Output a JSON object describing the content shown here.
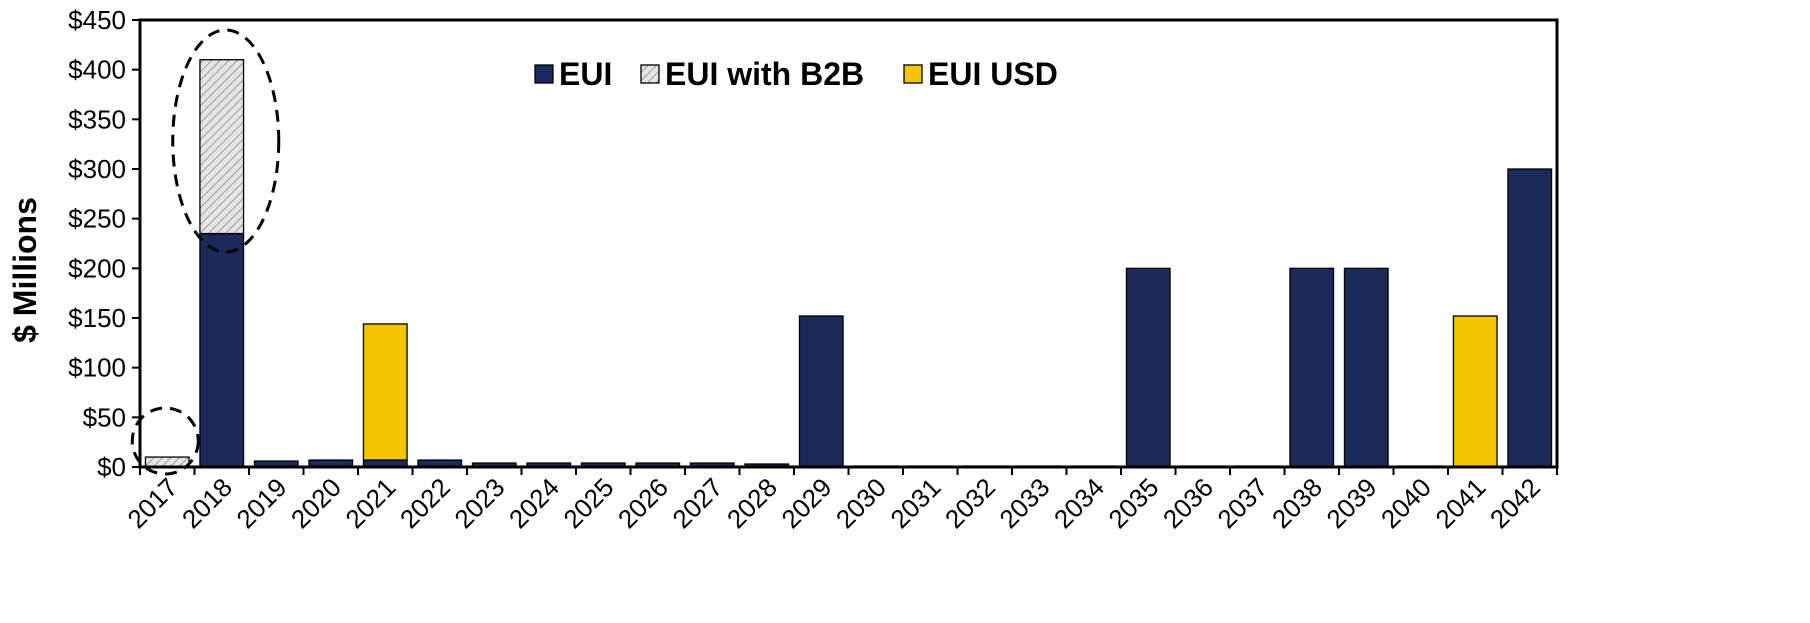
{
  "chart_data": {
    "type": "bar",
    "stacked": true,
    "title": "",
    "xlabel": "",
    "ylabel": "$ Millions",
    "ylim": [
      0,
      450
    ],
    "yticks": [
      0,
      50,
      100,
      150,
      200,
      250,
      300,
      350,
      400,
      450
    ],
    "ytick_labels": [
      "$0",
      "$50",
      "$100",
      "$150",
      "$200",
      "$250",
      "$300",
      "$350",
      "$400",
      "$450"
    ],
    "grid": false,
    "legend_position": "top-center",
    "categories": [
      "2017",
      "2018",
      "2019",
      "2020",
      "2021",
      "2022",
      "2023",
      "2024",
      "2025",
      "2026",
      "2027",
      "2028",
      "2029",
      "2030",
      "2031",
      "2032",
      "2033",
      "2034",
      "2035",
      "2036",
      "2037",
      "2038",
      "2039",
      "2040",
      "2041",
      "2042"
    ],
    "series": [
      {
        "name": "EUI",
        "color": "#1c2a5a",
        "values": [
          0,
          235,
          6,
          7,
          7,
          7,
          4,
          4,
          4,
          4,
          4,
          3,
          152,
          1,
          1,
          1,
          1,
          1,
          200,
          1,
          1,
          200,
          200,
          1,
          0,
          300
        ]
      },
      {
        "name": "EUI with B2B",
        "color": "#d9d9d9",
        "pattern": "hatched",
        "values": [
          10,
          175,
          0,
          0,
          0,
          0,
          0,
          0,
          0,
          0,
          0,
          0,
          0,
          0,
          0,
          0,
          0,
          0,
          0,
          0,
          0,
          0,
          0,
          0,
          0,
          0
        ]
      },
      {
        "name": "EUI USD",
        "color": "#f2c500",
        "values": [
          0,
          0,
          0,
          0,
          137,
          0,
          0,
          0,
          0,
          0,
          0,
          0,
          0,
          0,
          0,
          0,
          0,
          0,
          0,
          0,
          0,
          0,
          0,
          0,
          152,
          0
        ]
      }
    ],
    "annotations": [
      {
        "type": "dashed-ellipse",
        "around": "2017"
      },
      {
        "type": "dashed-ellipse",
        "around": "2018 EUI with B2B"
      }
    ]
  }
}
